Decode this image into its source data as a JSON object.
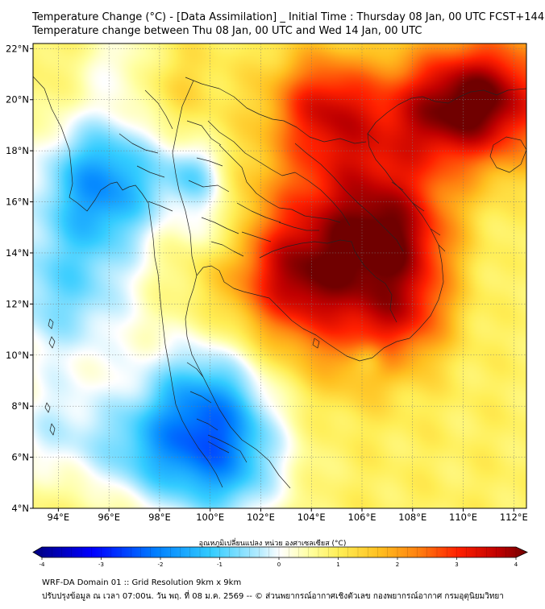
{
  "header": {
    "title_line1": "Temperature Change (°C) - [Data Assimilation] _ Initial Time : Thursday 08 Jan, 00 UTC FCST+144",
    "title_line2": "Temperature change between Thu 08 Jan, 00 UTC and Wed 14 Jan, 00 UTC"
  },
  "map": {
    "lon_range": [
      93,
      112.5
    ],
    "lat_range": [
      4,
      22.2
    ],
    "lon_ticks": [
      {
        "value": 94,
        "label": "94°E"
      },
      {
        "value": 96,
        "label": "96°E"
      },
      {
        "value": 98,
        "label": "98°E"
      },
      {
        "value": 100,
        "label": "100°E"
      },
      {
        "value": 102,
        "label": "102°E"
      },
      {
        "value": 104,
        "label": "104°E"
      },
      {
        "value": 106,
        "label": "106°E"
      },
      {
        "value": 108,
        "label": "108°E"
      },
      {
        "value": 110,
        "label": "110°E"
      },
      {
        "value": 112,
        "label": "112°E"
      }
    ],
    "lat_ticks": [
      {
        "value": 4,
        "label": "4°N"
      },
      {
        "value": 6,
        "label": "6°N"
      },
      {
        "value": 8,
        "label": "8°N"
      },
      {
        "value": 10,
        "label": "10°N"
      },
      {
        "value": 12,
        "label": "12°N"
      },
      {
        "value": 14,
        "label": "14°N"
      },
      {
        "value": 16,
        "label": "16°N"
      },
      {
        "value": 18,
        "label": "18°N"
      },
      {
        "value": 20,
        "label": "20°N"
      },
      {
        "value": 22,
        "label": "22°N"
      }
    ],
    "field": {
      "base_value": 0.9,
      "blobs": [
        {
          "lon": 104.6,
          "lat": 13.6,
          "amp": 2.4,
          "r": 2.6
        },
        {
          "lon": 103.2,
          "lat": 12.8,
          "amp": 0.8,
          "r": 1.3
        },
        {
          "lon": 107.5,
          "lat": 14.5,
          "amp": 1.7,
          "r": 1.6
        },
        {
          "lon": 106.3,
          "lat": 17.5,
          "amp": 1.0,
          "r": 2.0
        },
        {
          "lon": 104.5,
          "lat": 19.8,
          "amp": 1.9,
          "r": 1.5
        },
        {
          "lon": 111.2,
          "lat": 20.0,
          "amp": 2.6,
          "r": 1.8
        },
        {
          "lon": 108.8,
          "lat": 19.6,
          "amp": 1.6,
          "r": 1.6
        },
        {
          "lon": 108.0,
          "lat": 11.6,
          "amp": 1.0,
          "r": 1.2
        },
        {
          "lon": 106.5,
          "lat": 10.6,
          "amp": 0.6,
          "r": 1.4
        },
        {
          "lon": 98.5,
          "lat": 20.6,
          "amp": 0.5,
          "r": 1.2
        },
        {
          "lon": 95.8,
          "lat": 16.8,
          "amp": -2.5,
          "r": 1.8
        },
        {
          "lon": 94.2,
          "lat": 12.5,
          "amp": -1.6,
          "r": 2.2
        },
        {
          "lon": 99.8,
          "lat": 8.2,
          "amp": -2.1,
          "r": 1.8
        },
        {
          "lon": 100.4,
          "lat": 5.6,
          "amp": -2.0,
          "r": 1.8
        },
        {
          "lon": 99.4,
          "lat": 17.0,
          "amp": -1.4,
          "r": 0.9
        },
        {
          "lon": 100.2,
          "lat": 15.0,
          "amp": -0.9,
          "r": 0.9
        },
        {
          "lon": 96.5,
          "lat": 21.5,
          "amp": -0.8,
          "r": 1.2
        },
        {
          "lon": 93.8,
          "lat": 7.0,
          "amp": -1.0,
          "r": 1.6
        },
        {
          "lon": 97.2,
          "lat": 6.2,
          "amp": -1.2,
          "r": 1.5
        },
        {
          "lon": 106.3,
          "lat": 9.9,
          "amp": -0.8,
          "r": 0.45
        },
        {
          "lon": 110.5,
          "lat": 14.0,
          "amp": -0.2,
          "r": 2.5
        }
      ]
    }
  },
  "colorbar": {
    "title": "อุณหภูมิเปลี่ยนแปลง หน่วย องศาเซลเซียส (°C)",
    "min": -4,
    "max": 4,
    "ticks": [
      "-4",
      "-3",
      "-2",
      "-1",
      "0",
      "1",
      "2",
      "3",
      "4"
    ]
  },
  "footer": {
    "line1": "WRF-DA Domain 01 :: Grid Resolution 9km x 9km",
    "line2": "ปรับปรุงข้อมูล ณ เวลา 07:00น. วัน พฤ. ที่ 08 ม.ค. 2569 -- © ส่วนพยากรณ์อากาศเชิงตัวเลข กองพยากรณ์อากาศ กรมอุตุนิยมวิทยา"
  },
  "colors": {
    "map_border": "#000000",
    "coastline": "#222222",
    "gridline": "#7a7a7a"
  }
}
